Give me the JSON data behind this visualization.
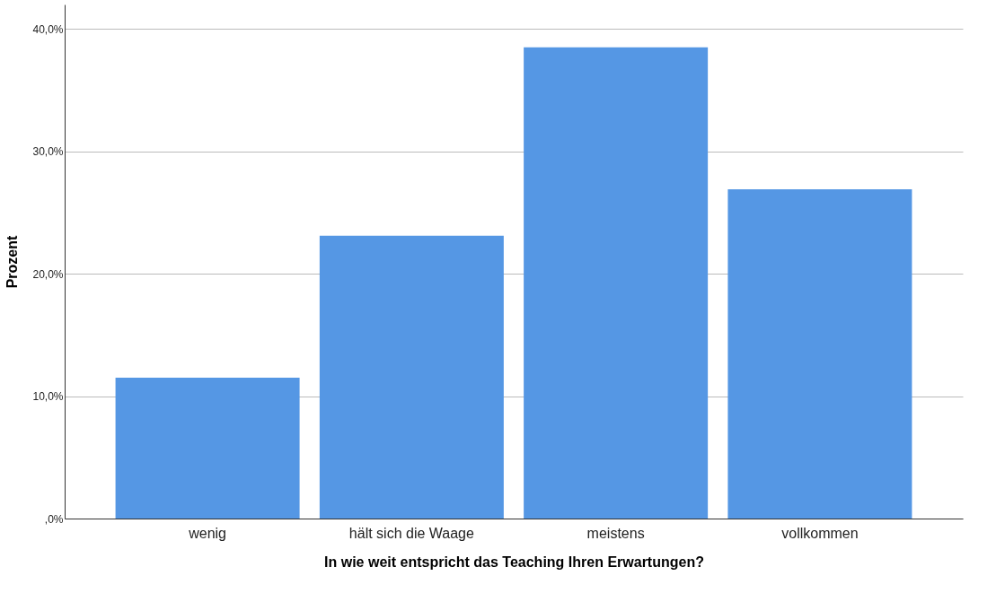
{
  "chart_data": {
    "type": "bar",
    "xlabel": "In wie weit entspricht das Teaching Ihren Erwartungen?",
    "ylabel": "Prozent",
    "categories": [
      "wenig",
      "hält sich die Waage",
      "meistens",
      "vollkommen"
    ],
    "values": [
      11.5,
      23.1,
      38.5,
      26.9
    ],
    "color": "#5597e4",
    "ylim": [
      0,
      42
    ],
    "yticks": [
      {
        "value": 0,
        "label": ",0%"
      },
      {
        "value": 10,
        "label": "10,0%"
      },
      {
        "value": 20,
        "label": "20,0%"
      },
      {
        "value": 30,
        "label": "30,0%"
      },
      {
        "value": 40,
        "label": "40,0%"
      }
    ],
    "grid": "y"
  }
}
